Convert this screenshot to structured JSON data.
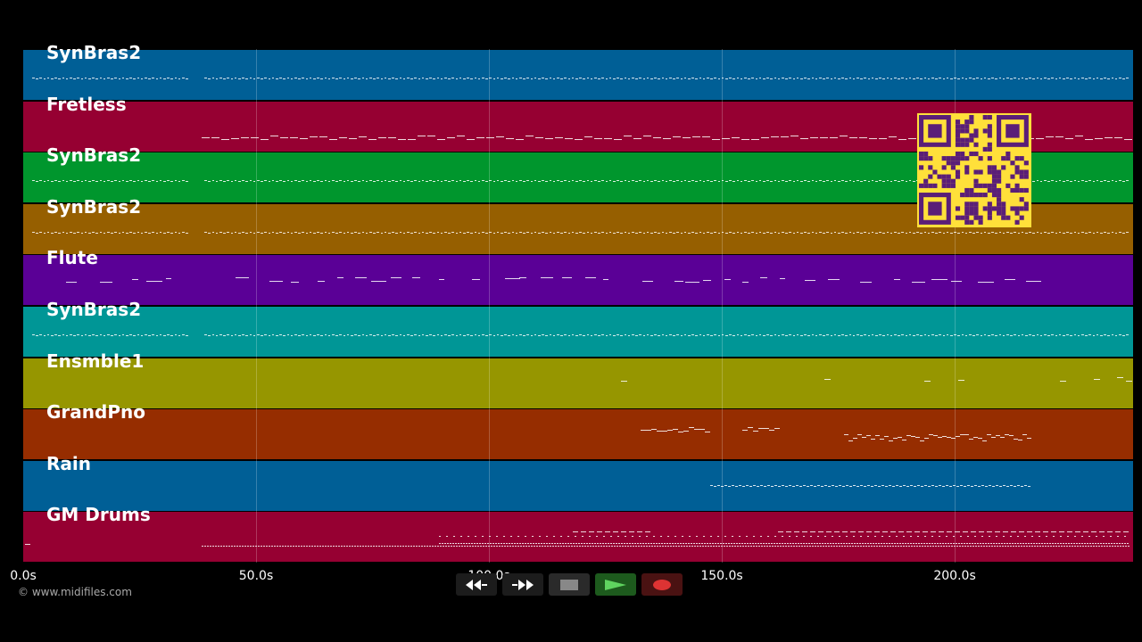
{
  "tracks": [
    {
      "name": "SynBras2",
      "color": "#005f96",
      "pattern": "dense"
    },
    {
      "name": "Fretless",
      "color": "#960032",
      "pattern": "bass"
    },
    {
      "name": "SynBras2",
      "color": "#00962d",
      "pattern": "dense"
    },
    {
      "name": "SynBras2",
      "color": "#965f00",
      "pattern": "dense"
    },
    {
      "name": "Flute",
      "color": "#5a0096",
      "pattern": "melody"
    },
    {
      "name": "SynBras2",
      "color": "#009696",
      "pattern": "dense"
    },
    {
      "name": "Ensmble1",
      "color": "#969600",
      "pattern": "sparse"
    },
    {
      "name": "GrandPno",
      "color": "#962d00",
      "pattern": "piano"
    },
    {
      "name": "Rain",
      "color": "#005f96",
      "pattern": "rain"
    },
    {
      "name": "GM Drums",
      "color": "#960032",
      "pattern": "drums"
    }
  ],
  "timeline": {
    "ticks": [
      "0.0s",
      "50.0s",
      "100.0s",
      "150.0s",
      "200.0s"
    ],
    "tick_seconds": [
      0,
      50,
      100,
      150,
      200
    ],
    "max_seconds": 238.3
  },
  "copyright": "© www.midifiles.com",
  "transport": [
    {
      "name": "rewind-button",
      "icon": "rewind-icon"
    },
    {
      "name": "fast-forward-button",
      "icon": "fast-forward-icon"
    },
    {
      "name": "stop-button",
      "icon": "stop-icon"
    },
    {
      "name": "play-button",
      "icon": "play-icon"
    },
    {
      "name": "record-button",
      "icon": "record-icon"
    }
  ],
  "qr_code": {
    "icon": "qr-code-icon",
    "color": "#ffe03a"
  }
}
